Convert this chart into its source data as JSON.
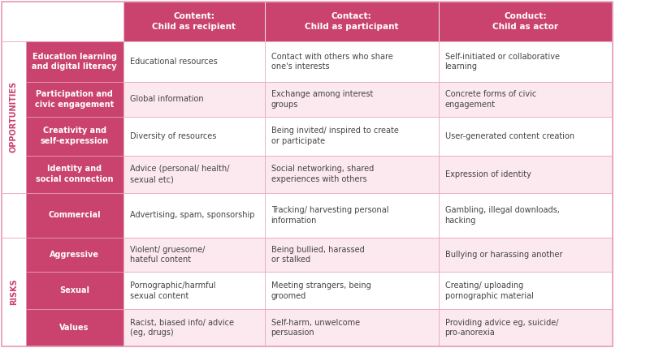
{
  "header_row": [
    "Content:\nChild as recipient",
    "Contact:\nChild as participant",
    "Conduct:\nChild as actor"
  ],
  "rows": [
    {
      "category": "Education learning\nand digital literacy",
      "content": "Educational resources",
      "contact": "Contact with others who share\none's interests",
      "conduct": "Self-initiated or collaborative\nlearning",
      "cat_bg": "#c9436e",
      "row_bg": "#ffffff"
    },
    {
      "category": "Participation and\ncivic engagement",
      "content": "Global information",
      "contact": "Exchange among interest\ngroups",
      "conduct": "Concrete forms of civic\nengagement",
      "cat_bg": "#c9436e",
      "row_bg": "#fce8ef"
    },
    {
      "category": "Creativity and\nself-expression",
      "content": "Diversity of resources",
      "contact": "Being invited/ inspired to create\nor participate",
      "conduct": "User-generated content creation",
      "cat_bg": "#c9436e",
      "row_bg": "#ffffff"
    },
    {
      "category": "Identity and\nsocial connection",
      "content": "Advice (personal/ health/\nsexual etc)",
      "contact": "Social networking, shared\nexperiences with others",
      "conduct": "Expression of identity",
      "cat_bg": "#c9436e",
      "row_bg": "#fce8ef"
    },
    {
      "category": "Commercial",
      "content": "Advertising, spam, sponsorship",
      "contact": "Tracking/ harvesting personal\ninformation",
      "conduct": "Gambling, illegal downloads,\nhacking",
      "cat_bg": "#c9436e",
      "row_bg": "#ffffff"
    },
    {
      "category": "Aggressive",
      "content": "Violent/ gruesome/\nhateful content",
      "contact": "Being bullied, harassed\nor stalked",
      "conduct": "Bullying or harassing another",
      "cat_bg": "#c9436e",
      "row_bg": "#fce8ef"
    },
    {
      "category": "Sexual",
      "content": "Pornographic/harmful\nsexual content",
      "contact": "Meeting strangers, being\ngroomed",
      "conduct": "Creating/ uploading\npornographic material",
      "cat_bg": "#c9436e",
      "row_bg": "#ffffff"
    },
    {
      "category": "Values",
      "content": "Racist, biased info/ advice\n(eg, drugs)",
      "contact": "Self-harm, unwelcome\npersuasion",
      "conduct": "Providing advice eg, suicide/\npro-anorexia",
      "cat_bg": "#c9436e",
      "row_bg": "#fce8ef"
    }
  ],
  "header_bg": "#c9436e",
  "header_text_color": "#ffffff",
  "cat_text_color": "#ffffff",
  "body_text_color": "#444444",
  "section_label_color": "#c9436e",
  "border_color": "#e8a0b8",
  "opp_label": "OPPORTUNITIES",
  "risk_label": "RISKS",
  "figsize": [
    8.0,
    4.29
  ]
}
